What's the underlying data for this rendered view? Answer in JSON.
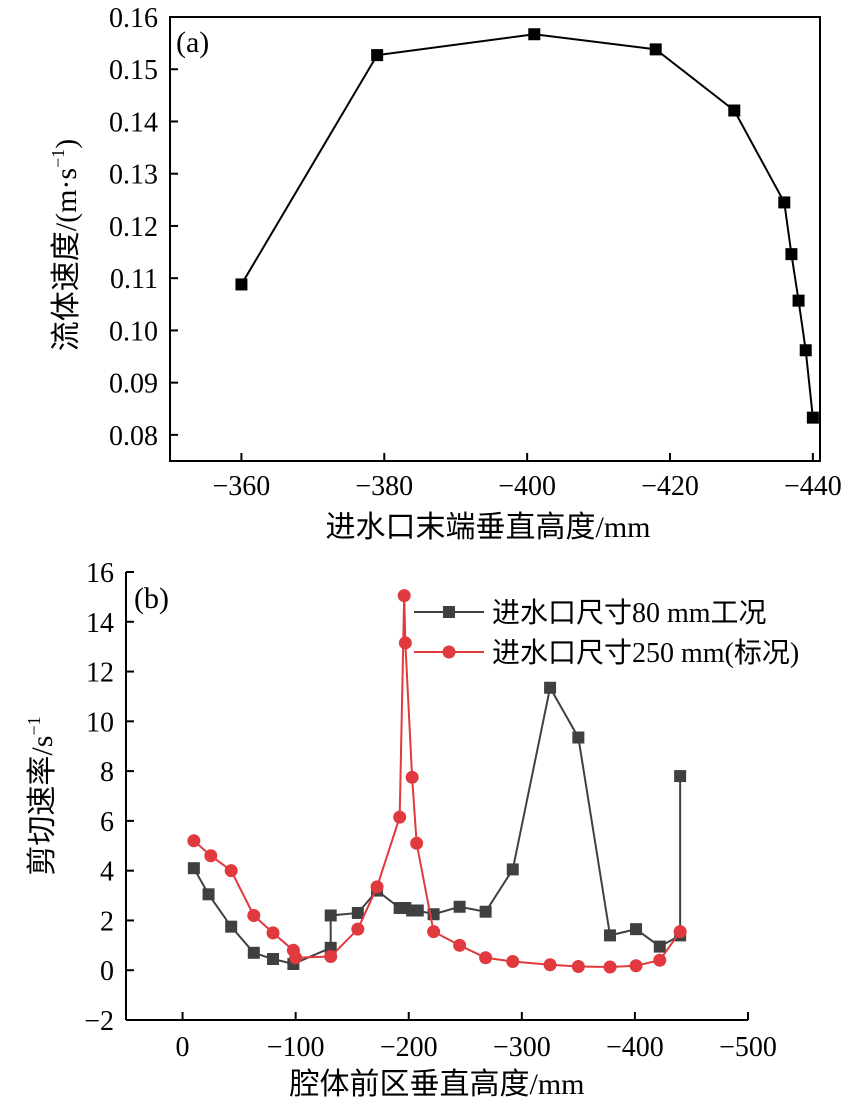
{
  "chart_data": [
    {
      "type": "line",
      "panel_label": "(a)",
      "xlabel": "进水口末端垂直高度/mm",
      "ylabel": "流体速度/(m·s",
      "ylabel_sup": "−1",
      "ylabel_tail": ")",
      "xlim": [
        -350,
        -441
      ],
      "ylim": [
        0.075,
        0.16
      ],
      "x_ticks": [
        -360,
        -380,
        -400,
        -420,
        -440
      ],
      "x_tick_labels": [
        "−360",
        "−380",
        "−400",
        "−420",
        "−440"
      ],
      "y_ticks": [
        0.08,
        0.09,
        0.1,
        0.11,
        0.12,
        0.13,
        0.14,
        0.15,
        0.16
      ],
      "y_tick_labels": [
        "0.08",
        "0.09",
        "0.10",
        "0.11",
        "0.12",
        "0.13",
        "0.14",
        "0.15",
        "0.16"
      ],
      "series": [
        {
          "color": "#000000",
          "marker": "square",
          "x": [
            -360,
            -379,
            -401,
            -418,
            -429,
            -436,
            -437,
            -438,
            -439,
            -440
          ],
          "y": [
            0.1088,
            0.1527,
            0.1567,
            0.1538,
            0.1421,
            0.1245,
            0.1146,
            0.1057,
            0.0962,
            0.0833
          ]
        }
      ]
    },
    {
      "type": "line",
      "panel_label": "(b)",
      "xlabel": "腔体前区垂直高度/mm",
      "ylabel": "剪切速率/s",
      "ylabel_sup": "−1",
      "xlim": [
        50,
        -500
      ],
      "ylim": [
        -2,
        16
      ],
      "x_ticks": [
        0,
        -100,
        -200,
        -300,
        -400,
        -500
      ],
      "x_tick_labels": [
        "0",
        "−100",
        "−200",
        "−300",
        "−400",
        "−500"
      ],
      "y_ticks": [
        -2,
        0,
        2,
        4,
        6,
        8,
        10,
        12,
        14,
        16
      ],
      "y_tick_labels": [
        "−2",
        "0",
        "2",
        "4",
        "6",
        "8",
        "10",
        "12",
        "14",
        "16"
      ],
      "legend_position": "top-right",
      "series": [
        {
          "name": "进水口尺寸80 mm工况",
          "color": "#404040",
          "marker": "square",
          "x": [
            -10,
            -23,
            -43,
            -63,
            -80,
            -98,
            -131,
            -131,
            -155,
            -172,
            -192,
            -197,
            -203,
            -208,
            -222,
            -245,
            -268,
            -292,
            -325,
            -350,
            -378,
            -401,
            -422,
            -440,
            -440
          ],
          "y": [
            4.1,
            3.05,
            1.75,
            0.7,
            0.45,
            0.25,
            0.9,
            2.2,
            2.3,
            3.2,
            2.5,
            2.5,
            2.4,
            2.4,
            2.25,
            2.55,
            2.35,
            4.05,
            11.35,
            9.35,
            1.4,
            1.65,
            0.95,
            1.4,
            7.8
          ]
        },
        {
          "name": "进水口尺寸250 mm(标况)",
          "color": "#e0393e",
          "marker": "circle",
          "x": [
            -10,
            -25,
            -43,
            -63,
            -80,
            -98,
            -100,
            -131,
            -155,
            -172,
            -192,
            -196,
            -197,
            -203,
            -207,
            -222,
            -245,
            -268,
            -292,
            -325,
            -350,
            -378,
            -401,
            -422,
            -440
          ],
          "y": [
            5.2,
            4.6,
            4.0,
            2.2,
            1.5,
            0.8,
            0.5,
            0.55,
            1.65,
            3.35,
            6.15,
            15.05,
            13.15,
            7.75,
            5.1,
            1.55,
            1.0,
            0.5,
            0.35,
            0.22,
            0.15,
            0.13,
            0.18,
            0.4,
            1.55
          ]
        }
      ]
    }
  ]
}
